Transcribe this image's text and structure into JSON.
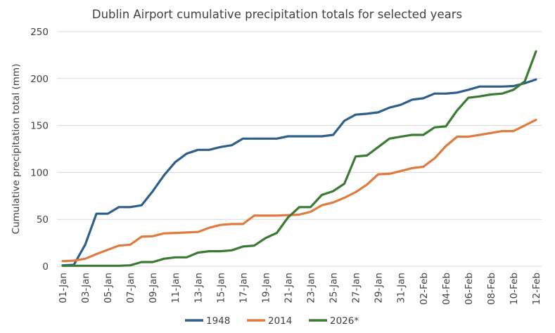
{
  "chart_data": {
    "type": "line",
    "title": "Dublin Airport cumulative precipitation totals for selected years",
    "xlabel": "",
    "ylabel": "Cumulative precipitation total (mm)",
    "ylim": [
      0,
      250
    ],
    "yticks": [
      0,
      50,
      100,
      150,
      200,
      250
    ],
    "grid": true,
    "legend_position": "bottom",
    "categories": [
      "01-Jan",
      "02-Jan",
      "03-Jan",
      "04-Jan",
      "05-Jan",
      "06-Jan",
      "07-Jan",
      "08-Jan",
      "09-Jan",
      "10-Jan",
      "11-Jan",
      "12-Jan",
      "13-Jan",
      "14-Jan",
      "15-Jan",
      "16-Jan",
      "17-Jan",
      "18-Jan",
      "19-Jan",
      "20-Jan",
      "21-Jan",
      "22-Jan",
      "23-Jan",
      "24-Jan",
      "25-Jan",
      "26-Jan",
      "27-Jan",
      "28-Jan",
      "29-Jan",
      "30-Jan",
      "31-Jan",
      "01-Feb",
      "02-Feb",
      "03-Feb",
      "04-Feb",
      "05-Feb",
      "06-Feb",
      "07-Feb",
      "08-Feb",
      "09-Feb",
      "10-Feb",
      "11-Feb",
      "12-Feb"
    ],
    "tick_labels": [
      "01-Jan",
      "03-Jan",
      "05-Jan",
      "07-Jan",
      "09-Jan",
      "11-Jan",
      "13-Jan",
      "15-Jan",
      "17-Jan",
      "19-Jan",
      "21-Jan",
      "23-Jan",
      "25-Jan",
      "27-Jan",
      "29-Jan",
      "31-Jan",
      "02-Feb",
      "04-Feb",
      "06-Feb",
      "08-Feb",
      "10-Feb",
      "12-Feb"
    ],
    "series": [
      {
        "name": "1948",
        "color": "#2e5f8a",
        "values": [
          1,
          1.5,
          23,
          56,
          56,
          63,
          63,
          65,
          80,
          97,
          111,
          120,
          124,
          124,
          127,
          129,
          136,
          136,
          136,
          136,
          138.5,
          138.5,
          138.5,
          138.5,
          140,
          155,
          161.5,
          162.5,
          164,
          169,
          172,
          177.5,
          179,
          184,
          184,
          185,
          188,
          191.5,
          191.5,
          191.5,
          192,
          195,
          199
        ]
      },
      {
        "name": "2014",
        "color": "#e07b3f",
        "values": [
          5.5,
          6,
          8,
          13,
          17.5,
          22,
          23,
          31.5,
          32,
          35,
          35.5,
          36,
          36.5,
          41,
          44,
          45,
          45,
          54,
          54,
          54,
          54.5,
          55,
          58,
          65,
          68,
          73,
          79,
          87,
          98,
          98.5,
          101.5,
          104.5,
          106,
          115,
          128,
          138,
          138,
          140,
          142,
          144,
          144,
          150,
          156
        ]
      },
      {
        "name": "2026*",
        "color": "#3b7a32",
        "values": [
          0.5,
          0.5,
          0.5,
          0.5,
          0.5,
          0.5,
          1,
          4.5,
          4.5,
          8,
          9.5,
          9.5,
          14.5,
          16,
          16,
          17,
          21,
          22,
          30,
          35.5,
          52,
          63,
          63,
          76,
          80,
          88,
          117,
          118,
          127,
          136,
          138,
          140,
          140,
          148,
          149,
          166,
          179.5,
          181,
          183,
          184,
          188,
          197,
          229
        ]
      }
    ]
  }
}
